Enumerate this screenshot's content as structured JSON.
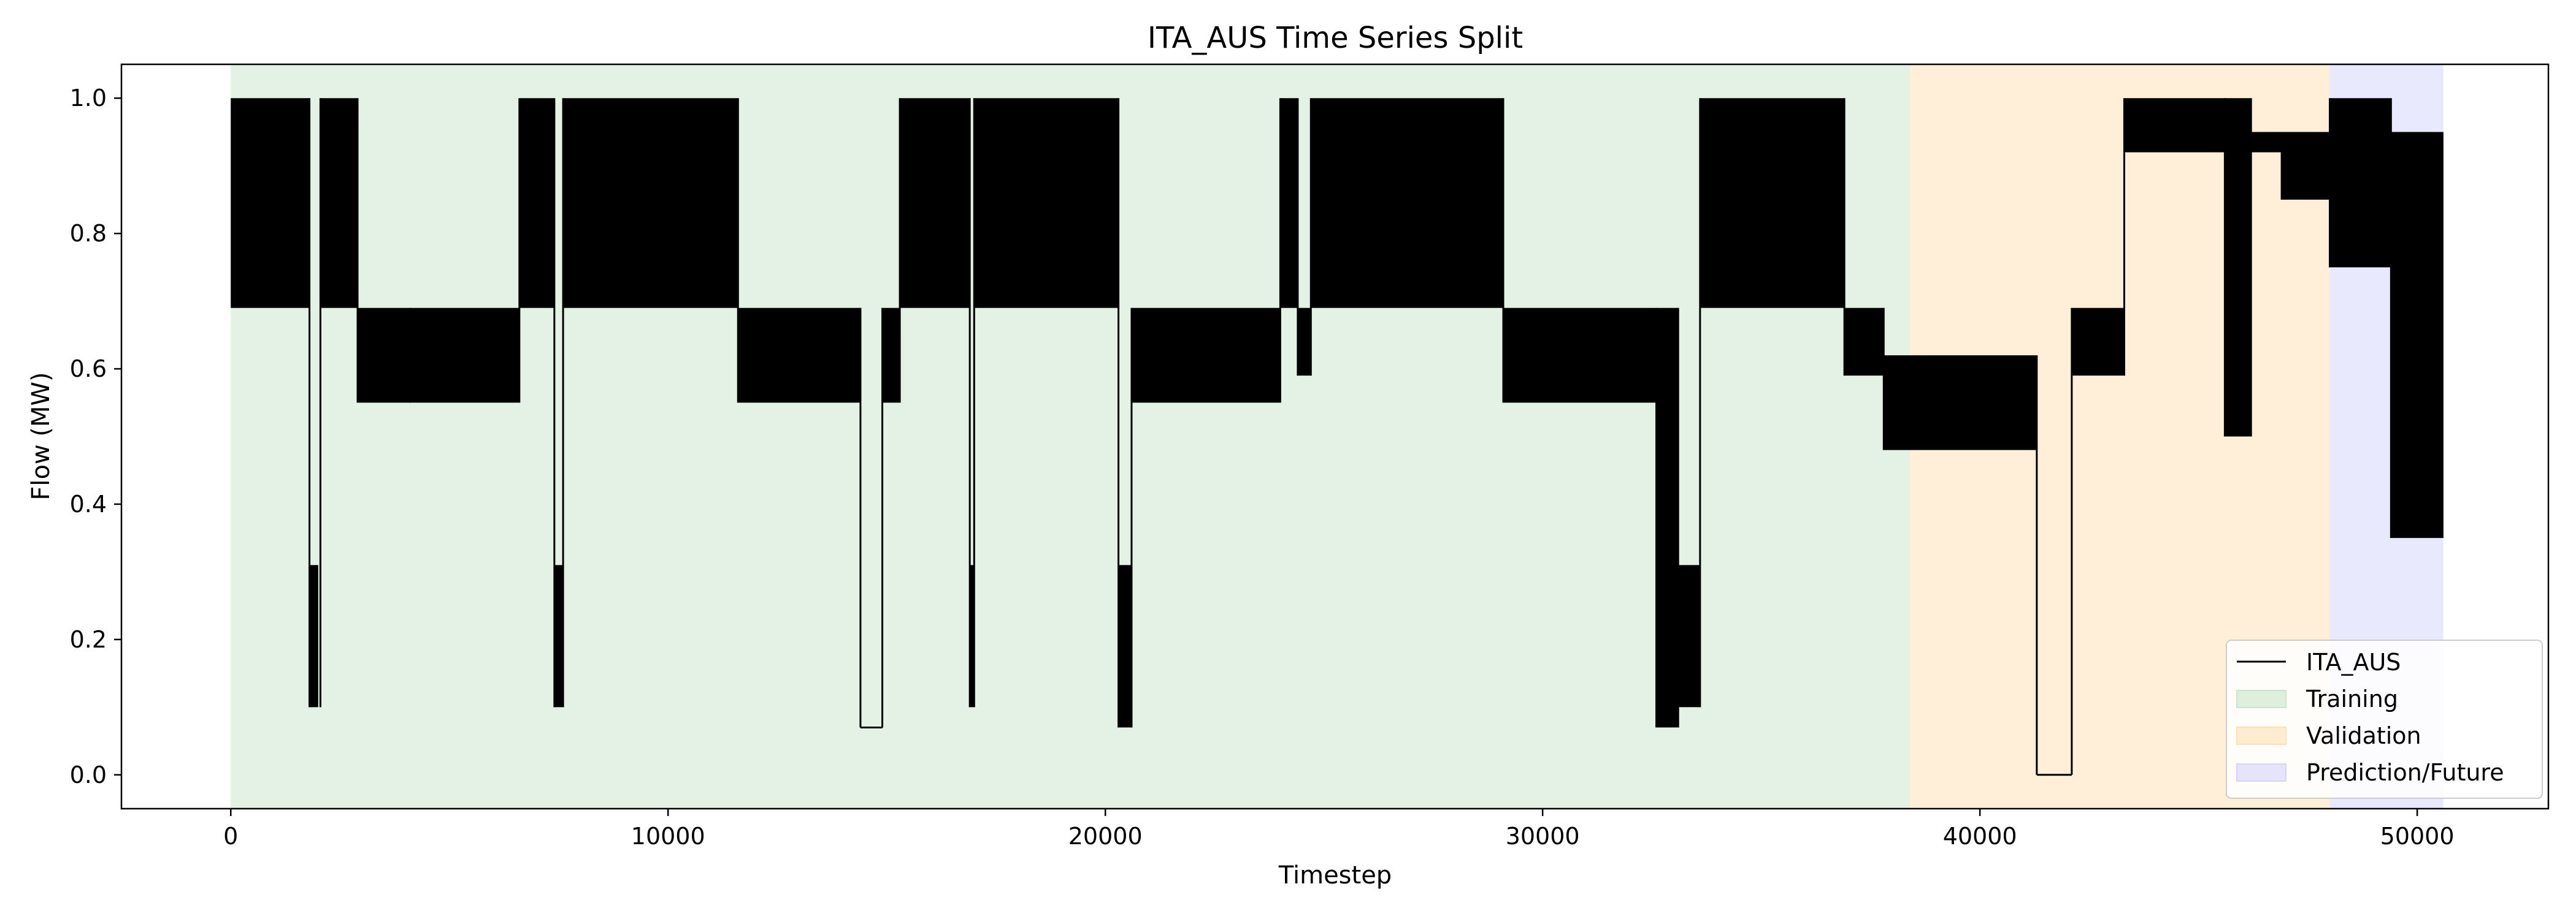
{
  "chart_data": {
    "type": "line",
    "title": "ITA_AUS Time Series Split",
    "xlabel": "Timestep",
    "ylabel": "Flow (MW)",
    "xlim": [
      -2500,
      53000
    ],
    "ylim": [
      -0.05,
      1.05
    ],
    "x_ticks": [
      0,
      10000,
      20000,
      30000,
      40000,
      50000
    ],
    "x_tick_labels": [
      "0",
      "10000",
      "20000",
      "30000",
      "40000",
      "50000"
    ],
    "y_ticks": [
      0.0,
      0.2,
      0.4,
      0.6,
      0.8,
      1.0
    ],
    "y_tick_labels": [
      "0.0",
      "0.2",
      "0.4",
      "0.6",
      "0.8",
      "1.0"
    ],
    "grid": false,
    "legend_position": "bottom-right",
    "spans": [
      {
        "name": "Training",
        "x_start": 0,
        "x_end": 38400,
        "color": "#c8e6c9"
      },
      {
        "name": "Validation",
        "x_start": 38400,
        "x_end": 48000,
        "color": "#ffe0b2"
      },
      {
        "name": "Prediction/Future",
        "x_start": 48000,
        "x_end": 50600,
        "color": "#d4d4fb"
      }
    ],
    "series": [
      {
        "name": "ITA_AUS",
        "color": "#000000",
        "segments": [
          {
            "x0": 0,
            "x1": 1800,
            "low": 0.69,
            "high": 1.0
          },
          {
            "x0": 1800,
            "x1": 2000,
            "low": 0.1,
            "high": 0.31
          },
          {
            "x0": 2050,
            "x1": 2900,
            "low": 0.69,
            "high": 1.0
          },
          {
            "x0": 2900,
            "x1": 4100,
            "low": 0.55,
            "high": 0.69
          },
          {
            "x0": 4100,
            "x1": 6600,
            "low": 0.55,
            "high": 0.69
          },
          {
            "x0": 6600,
            "x1": 7400,
            "low": 0.69,
            "high": 1.0
          },
          {
            "x0": 7400,
            "x1": 7600,
            "low": 0.1,
            "high": 0.31
          },
          {
            "x0": 7600,
            "x1": 11600,
            "low": 0.69,
            "high": 1.0
          },
          {
            "x0": 11600,
            "x1": 14400,
            "low": 0.55,
            "high": 0.69
          },
          {
            "x0": 14400,
            "x1": 14900,
            "low": 0.07,
            "high": 0.07
          },
          {
            "x0": 14900,
            "x1": 15300,
            "low": 0.55,
            "high": 0.69
          },
          {
            "x0": 15300,
            "x1": 16900,
            "low": 0.69,
            "high": 1.0
          },
          {
            "x0": 16900,
            "x1": 17000,
            "low": 0.1,
            "high": 0.31
          },
          {
            "x0": 17000,
            "x1": 20300,
            "low": 0.69,
            "high": 1.0
          },
          {
            "x0": 20300,
            "x1": 20600,
            "low": 0.07,
            "high": 0.31
          },
          {
            "x0": 20600,
            "x1": 24000,
            "low": 0.55,
            "high": 0.69
          },
          {
            "x0": 24000,
            "x1": 24400,
            "low": 0.69,
            "high": 1.0
          },
          {
            "x0": 24400,
            "x1": 24700,
            "low": 0.59,
            "high": 0.69
          },
          {
            "x0": 24700,
            "x1": 29100,
            "low": 0.69,
            "high": 1.0
          },
          {
            "x0": 29100,
            "x1": 32600,
            "low": 0.55,
            "high": 0.69
          },
          {
            "x0": 32600,
            "x1": 33100,
            "low": 0.07,
            "high": 0.69
          },
          {
            "x0": 33100,
            "x1": 33600,
            "low": 0.1,
            "high": 0.31
          },
          {
            "x0": 33600,
            "x1": 36900,
            "low": 0.69,
            "high": 1.0
          },
          {
            "x0": 36900,
            "x1": 37800,
            "low": 0.59,
            "high": 0.69
          },
          {
            "x0": 37800,
            "x1": 41300,
            "low": 0.48,
            "high": 0.62
          },
          {
            "x0": 41300,
            "x1": 42100,
            "low": 0.0,
            "high": 0.0
          },
          {
            "x0": 42100,
            "x1": 43300,
            "low": 0.59,
            "high": 0.69
          },
          {
            "x0": 43300,
            "x1": 45600,
            "low": 0.92,
            "high": 1.0
          },
          {
            "x0": 45600,
            "x1": 46200,
            "low": 0.5,
            "high": 1.0
          },
          {
            "x0": 46200,
            "x1": 46900,
            "low": 0.92,
            "high": 0.95
          },
          {
            "x0": 46900,
            "x1": 48000,
            "low": 0.85,
            "high": 0.95
          },
          {
            "x0": 48000,
            "x1": 49400,
            "low": 0.75,
            "high": 1.0
          },
          {
            "x0": 49400,
            "x1": 50600,
            "low": 0.35,
            "high": 0.95
          }
        ]
      }
    ]
  }
}
